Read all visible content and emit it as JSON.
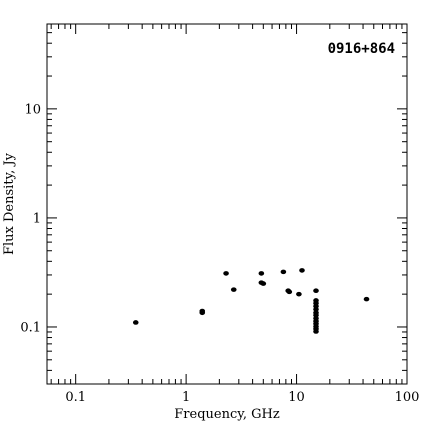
{
  "chart_data": {
    "type": "scatter",
    "title": "0916+864",
    "xlabel": "Frequency, GHz",
    "ylabel": "Flux Density, Jy",
    "x_scale": "log",
    "y_scale": "log",
    "xlim": [
      0.055,
      100
    ],
    "ylim": [
      0.03,
      60
    ],
    "x_ticks": [
      {
        "value": 0.1,
        "label": "0.1"
      },
      {
        "value": 1,
        "label": "1"
      },
      {
        "value": 10,
        "label": "10"
      },
      {
        "value": 100,
        "label": "100"
      }
    ],
    "y_ticks": [
      {
        "value": 0.1,
        "label": "0.1"
      },
      {
        "value": 1,
        "label": "1"
      },
      {
        "value": 10,
        "label": "10"
      }
    ],
    "grid": false,
    "series": [
      {
        "color": "#000000",
        "points": [
          {
            "x": 0.35,
            "y": 0.11
          },
          {
            "x": 1.4,
            "y": 0.14
          },
          {
            "x": 1.4,
            "y": 0.135
          },
          {
            "x": 2.3,
            "y": 0.31
          },
          {
            "x": 2.7,
            "y": 0.22
          },
          {
            "x": 4.8,
            "y": 0.31
          },
          {
            "x": 4.8,
            "y": 0.255
          },
          {
            "x": 5.0,
            "y": 0.25
          },
          {
            "x": 7.6,
            "y": 0.32
          },
          {
            "x": 8.4,
            "y": 0.215
          },
          {
            "x": 8.6,
            "y": 0.21
          },
          {
            "x": 10.5,
            "y": 0.2
          },
          {
            "x": 11.2,
            "y": 0.33
          },
          {
            "x": 15,
            "y": 0.215
          },
          {
            "x": 15,
            "y": 0.175
          },
          {
            "x": 15,
            "y": 0.165
          },
          {
            "x": 15,
            "y": 0.155
          },
          {
            "x": 15,
            "y": 0.145
          },
          {
            "x": 15,
            "y": 0.135
          },
          {
            "x": 15,
            "y": 0.128
          },
          {
            "x": 15,
            "y": 0.12
          },
          {
            "x": 15,
            "y": 0.113
          },
          {
            "x": 15,
            "y": 0.107
          },
          {
            "x": 15,
            "y": 0.101
          },
          {
            "x": 15,
            "y": 0.096
          },
          {
            "x": 15,
            "y": 0.091
          },
          {
            "x": 43,
            "y": 0.18
          }
        ]
      }
    ]
  }
}
